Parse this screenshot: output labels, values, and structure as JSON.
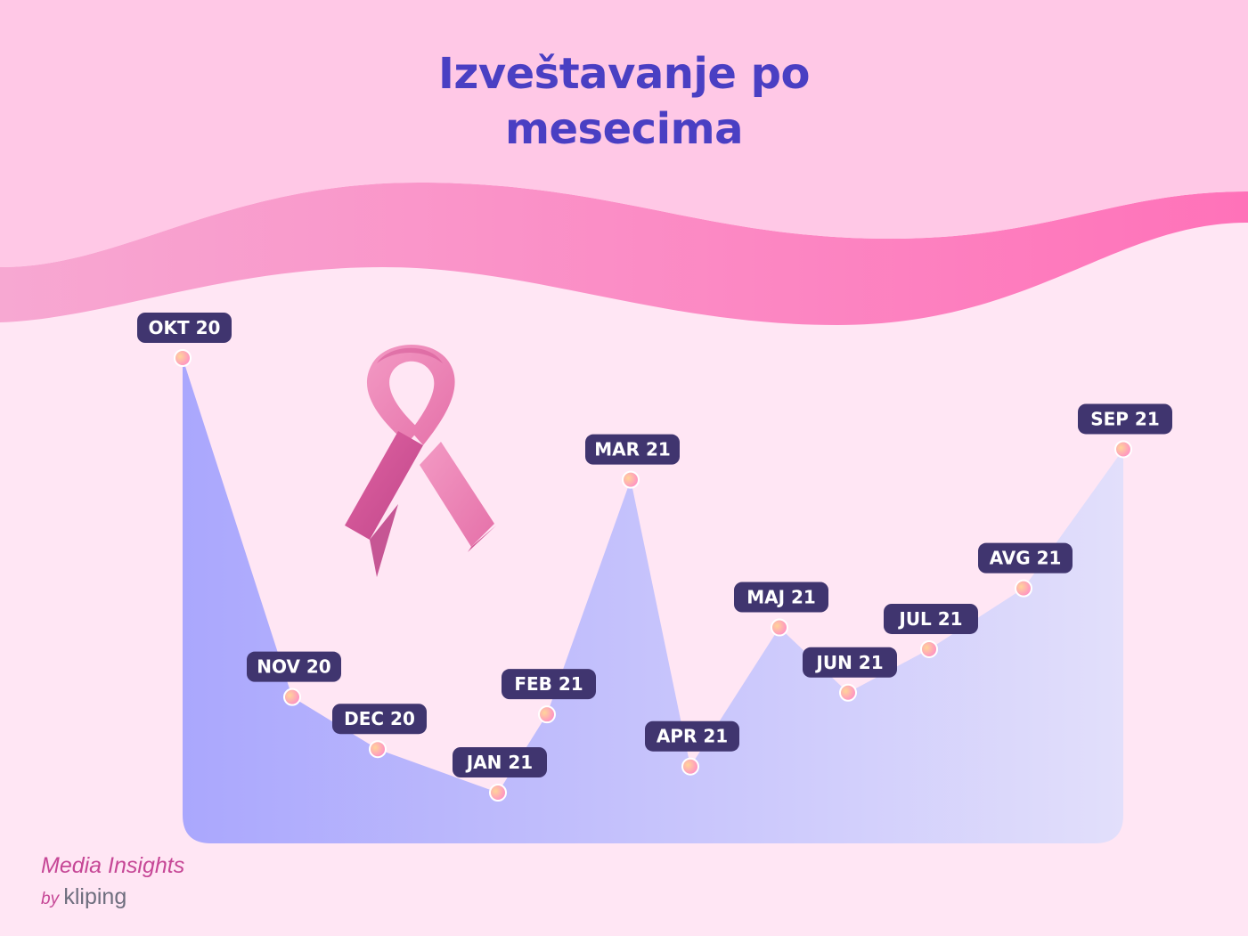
{
  "title": {
    "line1": "Izveštavanje po",
    "line2": "mesecima"
  },
  "brand": {
    "name": "Media Insights",
    "by": "by",
    "company": "kliping"
  },
  "colors": {
    "background": "#ffe6f4",
    "header_band": "#ffc8e6",
    "wave_start": "#f7a8d2",
    "wave_end": "#ff72b9",
    "area_start": "#aaa7fd",
    "area_end": "#e2dffb",
    "label_bg": "#40356f",
    "title": "#4a3fc3",
    "brand": "#c64796",
    "ribbon_light": "#ee86b6",
    "ribbon_dark": "#c94c8f"
  },
  "icons": [
    "pink-ribbon-icon"
  ],
  "chart_data": {
    "type": "area",
    "categories": [
      "OKT 20",
      "NOV 20",
      "DEC 20",
      "JAN 21",
      "FEB 21",
      "MAR 21",
      "APR 21",
      "MAJ 21",
      "JUN 21",
      "JUL 21",
      "AVG 21",
      "SEP 21"
    ],
    "values": [
      100,
      22,
      10,
      0,
      18,
      72,
      6,
      38,
      23,
      33,
      47,
      79
    ],
    "ylim": [
      0,
      100
    ],
    "grid": false,
    "legend": "none",
    "note": "No numeric axis shown; values are relative heights on a 0–100 scale"
  }
}
